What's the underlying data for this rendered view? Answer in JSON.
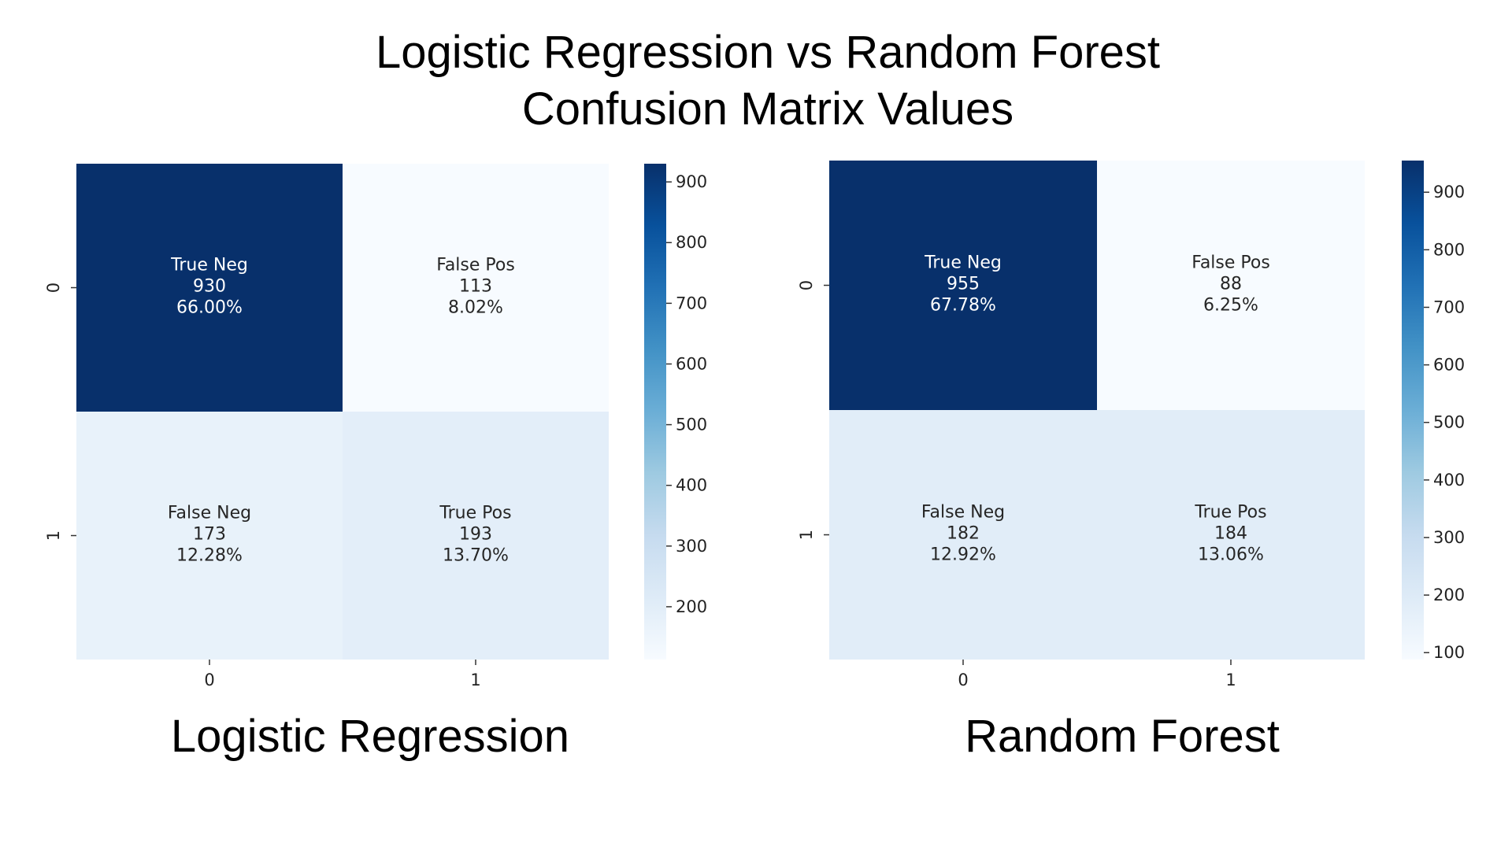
{
  "title_line1": "Logistic Regression vs Random Forest",
  "title_line2": "Confusion Matrix Values",
  "colors": {
    "low": "#f7fbff",
    "mid": "#6baed6",
    "high": "#08306b",
    "text_dark": "#262626",
    "text_light": "#ffffff"
  },
  "chart_data": [
    {
      "type": "heatmap",
      "subtitle": "Logistic Regression",
      "x_ticks": [
        "0",
        "1"
      ],
      "y_ticks": [
        "0",
        "1"
      ],
      "cells": [
        [
          {
            "label": "True Neg",
            "value": 930,
            "pct": "66.00%"
          },
          {
            "label": "False Pos",
            "value": 113,
            "pct": "8.02%"
          }
        ],
        [
          {
            "label": "False Neg",
            "value": 173,
            "pct": "12.28%"
          },
          {
            "label": "True Pos",
            "value": 193,
            "pct": "13.70%"
          }
        ]
      ],
      "colorbar": {
        "min": 113,
        "max": 930,
        "ticks": [
          900,
          800,
          700,
          600,
          500,
          400,
          300,
          200
        ]
      }
    },
    {
      "type": "heatmap",
      "subtitle": "Random Forest",
      "x_ticks": [
        "0",
        "1"
      ],
      "y_ticks": [
        "0",
        "1"
      ],
      "cells": [
        [
          {
            "label": "True Neg",
            "value": 955,
            "pct": "67.78%"
          },
          {
            "label": "False Pos",
            "value": 88,
            "pct": "6.25%"
          }
        ],
        [
          {
            "label": "False Neg",
            "value": 182,
            "pct": "12.92%"
          },
          {
            "label": "True Pos",
            "value": 184,
            "pct": "13.06%"
          }
        ]
      ],
      "colorbar": {
        "min": 88,
        "max": 955,
        "ticks": [
          900,
          800,
          700,
          600,
          500,
          400,
          300,
          200,
          100
        ]
      }
    }
  ]
}
